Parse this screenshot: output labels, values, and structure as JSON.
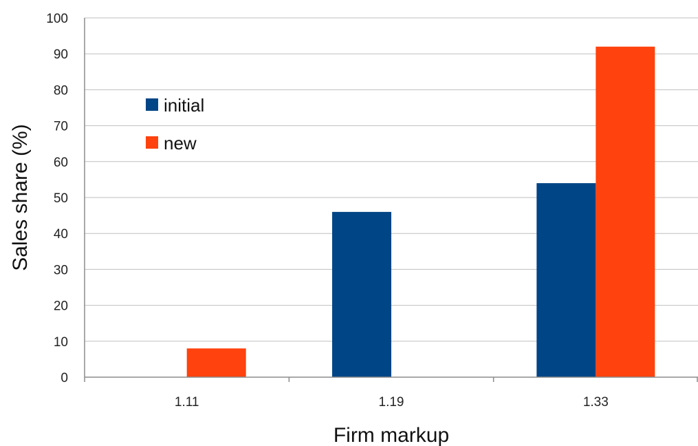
{
  "chart_data": {
    "type": "bar",
    "title": "",
    "xlabel": "Firm markup",
    "ylabel": "Sales share (%)",
    "categories": [
      "1.11",
      "1.19",
      "1.33"
    ],
    "ylim": [
      0,
      100
    ],
    "yticks": [
      0,
      10,
      20,
      30,
      40,
      50,
      60,
      70,
      80,
      90,
      100
    ],
    "grid": true,
    "legend_position": "top-left",
    "series": [
      {
        "name": "initial",
        "color": "#004586",
        "values": [
          0,
          46,
          54
        ]
      },
      {
        "name": "new",
        "color": "#FF420E",
        "values": [
          8,
          0,
          92
        ]
      }
    ]
  }
}
